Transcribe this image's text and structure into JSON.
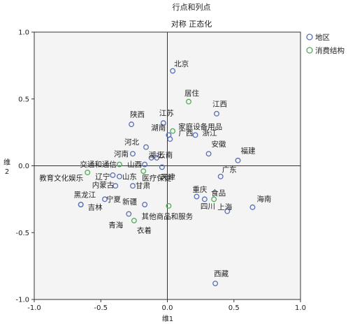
{
  "chart_data": {
    "type": "scatter",
    "title": "行点和列点",
    "subtitle": "对称 正态化",
    "xlabel": "维1",
    "ylabel": "维 2",
    "xlim": [
      -1.0,
      1.0
    ],
    "ylim": [
      -1.0,
      1.0
    ],
    "xticks": [
      "-1.0",
      "-0.5",
      "0.0",
      "0.5",
      "1.0"
    ],
    "yticks": [
      "1.0",
      "0.5",
      "0.0",
      "-0.5",
      "-1.0"
    ],
    "grid": false,
    "reference_lines": [
      0,
      0
    ],
    "legend_position": "top-right",
    "colors": {
      "地区": "#5b6fb5",
      "消费结构": "#54a85c",
      "plot_bg": "#f4f4f4"
    },
    "series": [
      {
        "name": "地区",
        "points": [
          {
            "label": "北京",
            "x": 0.04,
            "y": 0.71
          },
          {
            "label": "江西",
            "x": 0.37,
            "y": 0.39
          },
          {
            "label": "陕西",
            "x": -0.27,
            "y": 0.31
          },
          {
            "label": "江苏",
            "x": -0.03,
            "y": 0.32
          },
          {
            "label": "广西",
            "x": 0.01,
            "y": 0.23
          },
          {
            "label": "浙江",
            "x": 0.21,
            "y": 0.23
          },
          {
            "label": "湖南",
            "x": 0.02,
            "y": 0.2
          },
          {
            "label": "河北",
            "x": -0.16,
            "y": 0.14
          },
          {
            "label": "安徽",
            "x": 0.31,
            "y": 0.09
          },
          {
            "label": "福建",
            "x": 0.53,
            "y": 0.04
          },
          {
            "label": "河南",
            "x": -0.26,
            "y": 0.09
          },
          {
            "label": "湖北",
            "x": -0.12,
            "y": 0.06
          },
          {
            "label": "云南",
            "x": -0.08,
            "y": 0.06
          },
          {
            "label": "山西",
            "x": -0.17,
            "y": 0.01
          },
          {
            "label": "天津",
            "x": -0.04,
            "y": -0.01
          },
          {
            "label": "广东",
            "x": 0.4,
            "y": -0.08
          },
          {
            "label": "辽宁",
            "x": -0.41,
            "y": -0.07
          },
          {
            "label": "山东",
            "x": -0.36,
            "y": -0.08
          },
          {
            "label": "内蒙古",
            "x": -0.39,
            "y": -0.15
          },
          {
            "label": "甘肃",
            "x": -0.26,
            "y": -0.15
          },
          {
            "label": "重庆",
            "x": 0.22,
            "y": -0.23
          },
          {
            "label": "黑龙江",
            "x": -0.65,
            "y": -0.29
          },
          {
            "label": "宁夏",
            "x": -0.47,
            "y": -0.25
          },
          {
            "label": "新疆",
            "x": -0.17,
            "y": -0.29
          },
          {
            "label": "四川",
            "x": 0.28,
            "y": -0.25
          },
          {
            "label": "吉林",
            "x": -0.65,
            "y": -0.29
          },
          {
            "label": "上海",
            "x": 0.45,
            "y": -0.34
          },
          {
            "label": "海南",
            "x": 0.64,
            "y": -0.31
          },
          {
            "label": "青海",
            "x": -0.29,
            "y": -0.36
          },
          {
            "label": "西藏",
            "x": 0.36,
            "y": -0.88
          }
        ]
      },
      {
        "name": "消费结构",
        "points": [
          {
            "label": "居住",
            "x": 0.16,
            "y": 0.48
          },
          {
            "label": "家庭设备用品",
            "x": 0.04,
            "y": 0.26
          },
          {
            "label": "交通和通信",
            "x": -0.36,
            "y": 0.01
          },
          {
            "label": "教育文化娱乐",
            "x": -0.6,
            "y": -0.05
          },
          {
            "label": "医疗保健",
            "x": -0.18,
            "y": -0.04
          },
          {
            "label": "食品",
            "x": 0.35,
            "y": -0.25
          },
          {
            "label": "其他商品和服务",
            "x": 0.01,
            "y": -0.3
          },
          {
            "label": "衣着",
            "x": -0.25,
            "y": -0.41
          }
        ]
      }
    ]
  }
}
